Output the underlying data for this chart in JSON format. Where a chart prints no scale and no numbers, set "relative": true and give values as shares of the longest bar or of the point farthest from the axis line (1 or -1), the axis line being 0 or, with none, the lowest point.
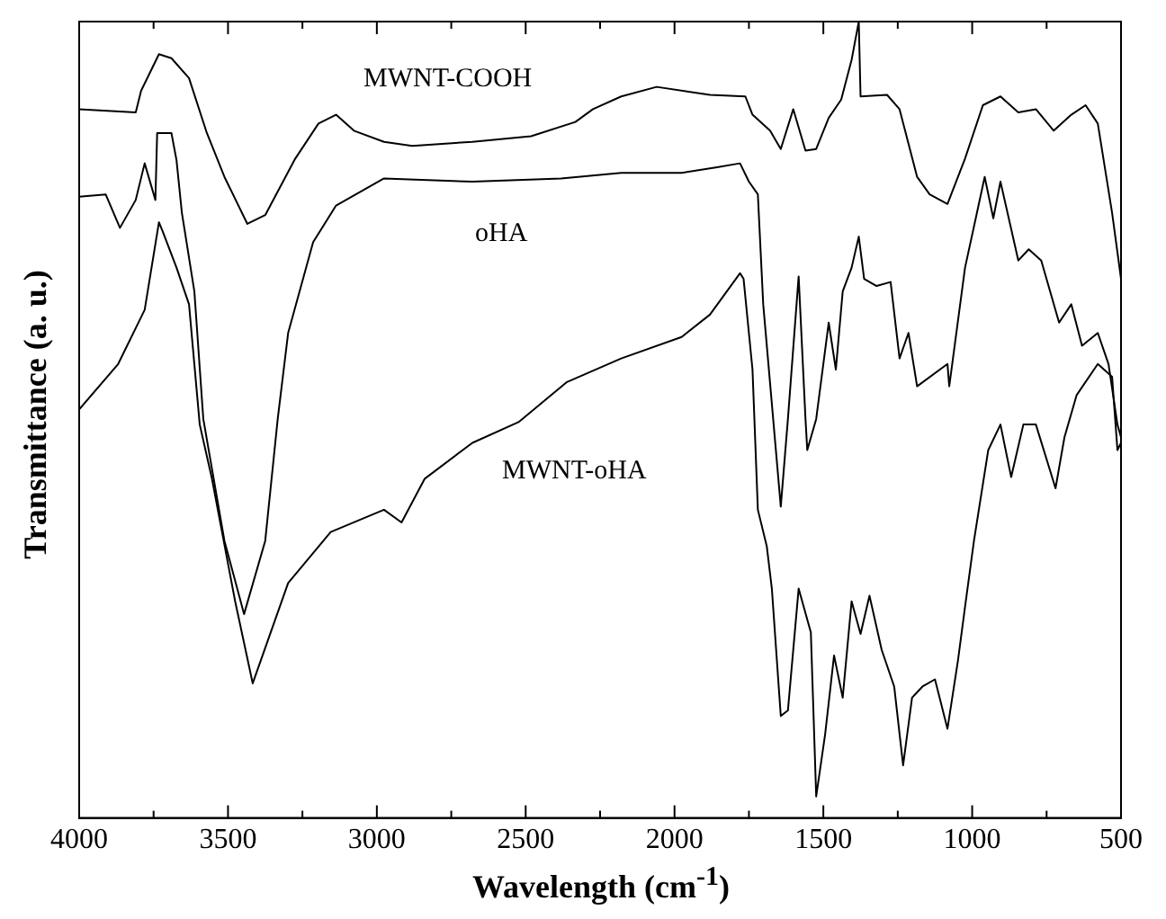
{
  "chart_data": {
    "type": "line",
    "xlabel": "Wavelength (cm$^{-1}$)",
    "ylabel": "Transmittance (a. u.)",
    "relative": true,
    "grid": false,
    "legend": false,
    "marker": "none",
    "line_style": "solid",
    "xlim": [
      4000,
      500
    ],
    "xticks": [
      4000,
      {
        "value": 3750,
        "label": null
      },
      3500,
      {
        "value": 3250,
        "label": null
      },
      3000,
      {
        "value": 2750,
        "label": null
      },
      2500,
      {
        "value": 2250,
        "label": null
      },
      2000,
      {
        "value": 1750,
        "label": null
      },
      1500,
      {
        "value": 1250,
        "label": null
      },
      1000,
      {
        "value": 750,
        "label": null
      },
      500
    ],
    "annotations": [
      "MWNT-COOH",
      "oHA",
      "MWNT-oHA"
    ],
    "series": [
      {
        "color": "#000000",
        "x": [
          4000,
          3810,
          3792,
          3732,
          3690,
          3631,
          3571,
          3512,
          3435,
          3375,
          3274,
          3196,
          3137,
          3077,
          2976,
          2881,
          2679,
          2482,
          2333,
          2274,
          2179,
          2060,
          1881,
          1762,
          1738,
          1679,
          1643,
          1601,
          1560,
          1524,
          1482,
          1440,
          1405,
          1381,
          1375,
          1286,
          1244,
          1185,
          1143,
          1083,
          1024,
          964,
          905,
          845,
          786,
          726,
          667,
          619,
          578,
          530,
          500
        ],
        "values": [
          0.89,
          0.886,
          0.913,
          0.959,
          0.954,
          0.929,
          0.86,
          0.805,
          0.746,
          0.757,
          0.828,
          0.872,
          0.883,
          0.863,
          0.849,
          0.844,
          0.849,
          0.856,
          0.874,
          0.89,
          0.906,
          0.918,
          0.908,
          0.906,
          0.883,
          0.863,
          0.84,
          0.89,
          0.838,
          0.84,
          0.879,
          0.902,
          0.952,
          1.0,
          0.906,
          0.908,
          0.89,
          0.805,
          0.783,
          0.771,
          0.828,
          0.895,
          0.906,
          0.886,
          0.89,
          0.863,
          0.883,
          0.895,
          0.872,
          0.76,
          0.677
        ]
      },
      {
        "color": "#000000",
        "x": [
          4000,
          3911,
          3863,
          3810,
          3780,
          3744,
          3738,
          3690,
          3673,
          3655,
          3613,
          3583,
          3512,
          3446,
          3375,
          3333,
          3298,
          3214,
          3137,
          2976,
          2679,
          2381,
          2179,
          1976,
          1857,
          1780,
          1750,
          1720,
          1702,
          1643,
          1619,
          1583,
          1560,
          1554,
          1524,
          1482,
          1458,
          1435,
          1405,
          1381,
          1363,
          1321,
          1274,
          1244,
          1214,
          1185,
          1083,
          1077,
          1024,
          988,
          958,
          929,
          905,
          845,
          810,
          768,
          708,
          667,
          631,
          578,
          542,
          512,
          500
        ],
        "values": [
          0.78,
          0.783,
          0.741,
          0.776,
          0.822,
          0.776,
          0.86,
          0.86,
          0.826,
          0.76,
          0.661,
          0.501,
          0.348,
          0.256,
          0.348,
          0.501,
          0.609,
          0.723,
          0.769,
          0.803,
          0.799,
          0.803,
          0.81,
          0.81,
          0.817,
          0.822,
          0.799,
          0.783,
          0.645,
          0.391,
          0.501,
          0.68,
          0.501,
          0.462,
          0.501,
          0.622,
          0.563,
          0.661,
          0.691,
          0.73,
          0.677,
          0.668,
          0.673,
          0.577,
          0.609,
          0.542,
          0.57,
          0.542,
          0.691,
          0.753,
          0.805,
          0.753,
          0.799,
          0.7,
          0.714,
          0.7,
          0.622,
          0.645,
          0.593,
          0.609,
          0.57,
          0.494,
          0.478
        ]
      },
      {
        "color": "#000000",
        "x": [
          4000,
          3869,
          3780,
          3732,
          3720,
          3673,
          3631,
          3595,
          3554,
          3476,
          3417,
          3298,
          3155,
          2976,
          2917,
          2839,
          2679,
          2524,
          2363,
          2179,
          1976,
          1881,
          1780,
          1768,
          1738,
          1720,
          1690,
          1673,
          1643,
          1619,
          1583,
          1542,
          1524,
          1494,
          1464,
          1435,
          1405,
          1375,
          1345,
          1304,
          1262,
          1232,
          1202,
          1167,
          1125,
          1083,
          1048,
          1024,
          994,
          946,
          905,
          869,
          828,
          786,
          720,
          690,
          649,
          578,
          530,
          512,
          500
        ],
        "values": [
          0.513,
          0.57,
          0.638,
          0.748,
          0.737,
          0.691,
          0.645,
          0.494,
          0.426,
          0.272,
          0.169,
          0.295,
          0.359,
          0.387,
          0.371,
          0.426,
          0.471,
          0.497,
          0.547,
          0.577,
          0.604,
          0.632,
          0.684,
          0.677,
          0.563,
          0.387,
          0.341,
          0.288,
          0.128,
          0.135,
          0.288,
          0.233,
          0.027,
          0.105,
          0.204,
          0.151,
          0.272,
          0.231,
          0.279,
          0.211,
          0.165,
          0.066,
          0.151,
          0.165,
          0.174,
          0.112,
          0.197,
          0.265,
          0.348,
          0.462,
          0.494,
          0.428,
          0.494,
          0.494,
          0.414,
          0.478,
          0.531,
          0.57,
          0.554,
          0.462,
          0.471
        ]
      }
    ]
  }
}
